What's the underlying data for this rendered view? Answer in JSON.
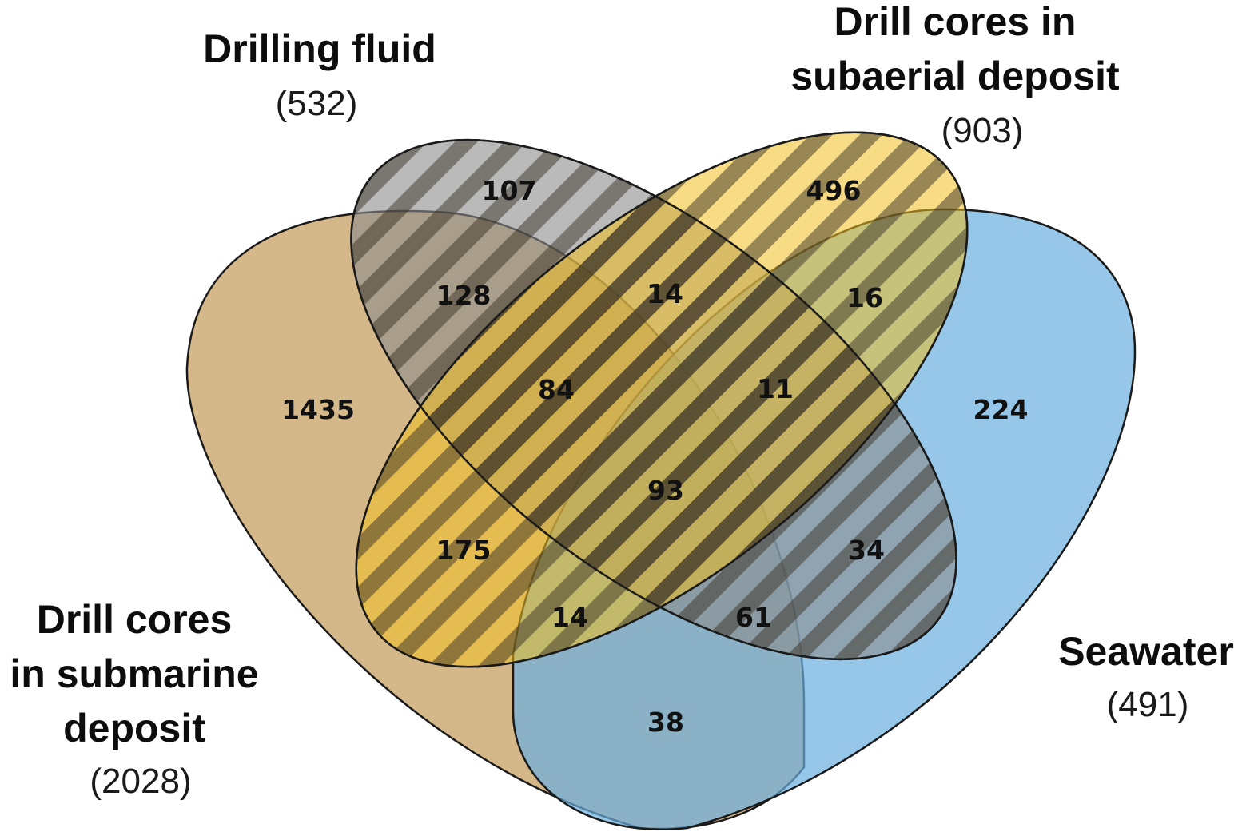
{
  "colors": {
    "submarine": "#c9a468",
    "drilling_fluid": "#8c8c8c",
    "subaerial": "#f0c020",
    "seawater": "#6aaede",
    "outline": "#1a1a1a",
    "hatch": "#3a3226"
  },
  "sets": {
    "drilling_fluid": {
      "title_lines": [
        "Drilling fluid"
      ],
      "count": "(532)"
    },
    "subaerial": {
      "title_lines": [
        "Drill cores in",
        "subaerial deposit"
      ],
      "count": "(903)"
    },
    "submarine": {
      "title_lines": [
        "Drill cores",
        "in submarine",
        "deposit"
      ],
      "count": "(2028)"
    },
    "seawater": {
      "title_lines": [
        "Seawater"
      ],
      "count": "(491)"
    }
  },
  "regions": [
    {
      "sets": [
        "drilling_fluid"
      ],
      "value": "107"
    },
    {
      "sets": [
        "subaerial"
      ],
      "value": "496"
    },
    {
      "sets": [
        "submarine",
        "drilling_fluid"
      ],
      "value": "128"
    },
    {
      "sets": [
        "drilling_fluid",
        "subaerial"
      ],
      "value": "14"
    },
    {
      "sets": [
        "subaerial",
        "seawater"
      ],
      "value": "16"
    },
    {
      "sets": [
        "submarine"
      ],
      "value": "1435"
    },
    {
      "sets": [
        "submarine",
        "drilling_fluid",
        "subaerial"
      ],
      "value": "84"
    },
    {
      "sets": [
        "drilling_fluid",
        "subaerial",
        "seawater"
      ],
      "value": "11"
    },
    {
      "sets": [
        "seawater"
      ],
      "value": "224"
    },
    {
      "sets": [
        "submarine",
        "drilling_fluid",
        "subaerial",
        "seawater"
      ],
      "value": "93"
    },
    {
      "sets": [
        "submarine",
        "subaerial"
      ],
      "value": "175"
    },
    {
      "sets": [
        "drilling_fluid",
        "seawater"
      ],
      "value": "34"
    },
    {
      "sets": [
        "submarine",
        "subaerial",
        "seawater"
      ],
      "value": "14"
    },
    {
      "sets": [
        "submarine",
        "drilling_fluid",
        "seawater"
      ],
      "value": "61"
    },
    {
      "sets": [
        "submarine",
        "seawater"
      ],
      "value": "38"
    }
  ]
}
